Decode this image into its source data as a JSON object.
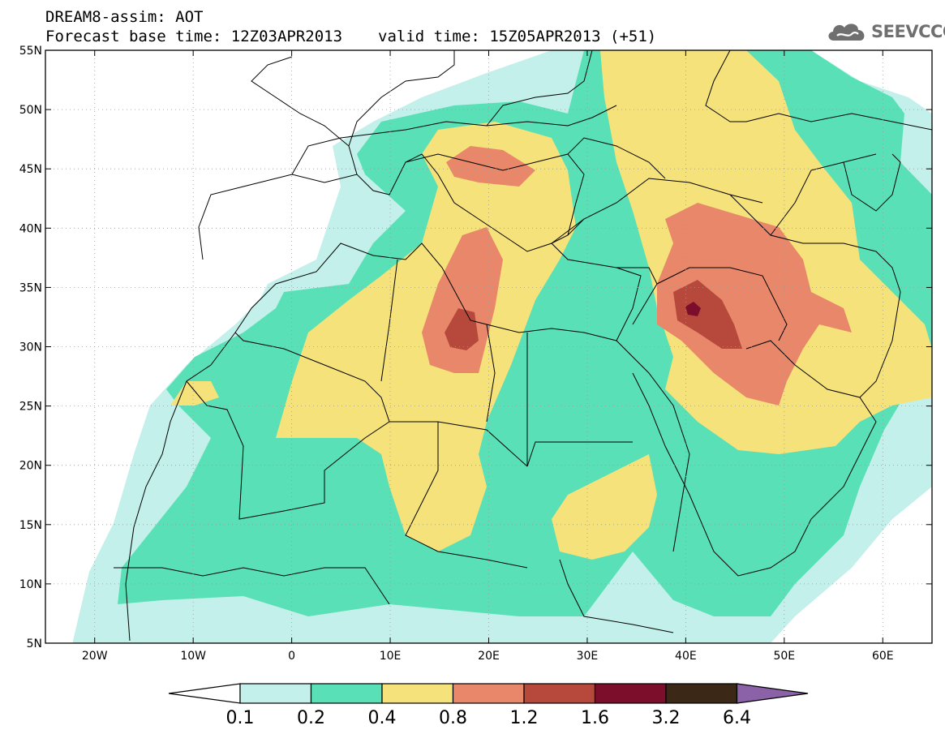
{
  "title": {
    "line1": "DREAM8-assim: AOT",
    "base_time": "Forecast base time: 12Z03APR2013",
    "valid_time": "valid time: 15Z05APR2013 (+51)"
  },
  "logo": {
    "text": "SEEVCCC",
    "icon": "cloud-icon"
  },
  "map": {
    "lon_range": [
      -25,
      65
    ],
    "lat_range": [
      5,
      55
    ],
    "lon_ticks": [
      {
        "value": -20,
        "label": "20W"
      },
      {
        "value": -10,
        "label": "10W"
      },
      {
        "value": 0,
        "label": "0"
      },
      {
        "value": 10,
        "label": "10E"
      },
      {
        "value": 20,
        "label": "20E"
      },
      {
        "value": 30,
        "label": "30E"
      },
      {
        "value": 40,
        "label": "40E"
      },
      {
        "value": 50,
        "label": "50E"
      },
      {
        "value": 60,
        "label": "60E"
      }
    ],
    "lat_ticks": [
      {
        "value": 5,
        "label": "5N"
      },
      {
        "value": 10,
        "label": "10N"
      },
      {
        "value": 15,
        "label": "15N"
      },
      {
        "value": 20,
        "label": "20N"
      },
      {
        "value": 25,
        "label": "25N"
      },
      {
        "value": 30,
        "label": "30N"
      },
      {
        "value": 35,
        "label": "35N"
      },
      {
        "value": 40,
        "label": "40N"
      },
      {
        "value": 45,
        "label": "45N"
      },
      {
        "value": 50,
        "label": "50N"
      },
      {
        "value": 55,
        "label": "55N"
      }
    ],
    "grid": true
  },
  "colorbar": {
    "labels": [
      "0.1",
      "0.2",
      "0.4",
      "0.8",
      "1.2",
      "1.6",
      "3.2",
      "6.4"
    ],
    "colors": [
      "#ffffff",
      "#c3f0ea",
      "#59e0b6",
      "#f6e27a",
      "#e8876a",
      "#b6493c",
      "#7c0d2b",
      "#3b2817",
      "#8b62a7"
    ]
  }
}
